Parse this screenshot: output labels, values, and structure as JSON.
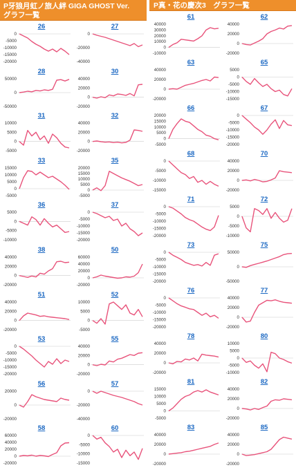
{
  "panels": [
    {
      "title": "P牙狼月虹ノ旅人絆 GIGA GHOST Ver.　グラフ一覧"
    },
    {
      "title": "P真・花の慶次3　グラフ一覧"
    }
  ],
  "colors": {
    "header_bg": "#ee8f2b",
    "line": "#e8527a",
    "link": "#1a67c2"
  },
  "chart_data": [
    {
      "type": "line",
      "title": "26",
      "yticks": [
        0,
        -5000,
        -10000,
        -15000,
        -20000
      ],
      "ylim": [
        -20000,
        0
      ],
      "values": [
        0,
        -1500,
        -3000,
        -5500,
        -7500,
        -9000,
        -11000,
        -12500,
        -11000,
        -13000,
        -10500,
        -12500,
        -15000
      ]
    },
    {
      "type": "line",
      "title": "27",
      "yticks": [
        0,
        -20000,
        -40000
      ],
      "ylim": [
        -40000,
        0
      ],
      "values": [
        0,
        -2000,
        -3500,
        -5000,
        -7000,
        -9000,
        -11000,
        -13000,
        -15000,
        -17000,
        -14000,
        -18500,
        -16000
      ]
    },
    {
      "type": "line",
      "title": "28",
      "yticks": [
        50000,
        0,
        -50000
      ],
      "ylim": [
        -50000,
        50000
      ],
      "values": [
        0,
        2000,
        5000,
        3000,
        8000,
        6000,
        10000,
        8000,
        12000,
        45000,
        47000,
        42000,
        48000
      ]
    },
    {
      "type": "line",
      "title": "30",
      "yticks": [
        40000,
        20000,
        0,
        -20000
      ],
      "ylim": [
        -20000,
        40000
      ],
      "values": [
        0,
        -2000,
        1000,
        -1000,
        5000,
        3000,
        7000,
        6000,
        4000,
        8000,
        3000,
        27000,
        28000
      ]
    },
    {
      "type": "line",
      "title": "31",
      "yticks": [
        10000,
        5000,
        0,
        -5000
      ],
      "ylim": [
        -5000,
        10000
      ],
      "values": [
        0,
        -2000,
        6000,
        3000,
        5000,
        1000,
        3000,
        -1000,
        4000,
        2000,
        -1000,
        -3000,
        -3500
      ]
    },
    {
      "type": "line",
      "title": "32",
      "yticks": [
        40000,
        20000,
        0,
        -20000
      ],
      "ylim": [
        -20000,
        40000
      ],
      "values": [
        0,
        1000,
        -500,
        -1500,
        -1000,
        -2500,
        -1500,
        -3000,
        -2000,
        3000,
        25000,
        24000,
        22000
      ]
    },
    {
      "type": "line",
      "title": "33",
      "yticks": [
        15000,
        10000,
        5000,
        0,
        -5000
      ],
      "ylim": [
        -5000,
        15000
      ],
      "values": [
        0,
        8000,
        13000,
        12500,
        10000,
        12000,
        10000,
        8000,
        9000,
        7000,
        5000,
        2500,
        -500
      ]
    },
    {
      "type": "line",
      "title": "35",
      "yticks": [
        20000,
        15000,
        10000,
        5000,
        0,
        -5000
      ],
      "ylim": [
        -5000,
        20000
      ],
      "values": [
        0,
        2000,
        -500,
        4000,
        17000,
        15000,
        13000,
        11000,
        9500,
        8000,
        6000,
        4000,
        5000
      ]
    },
    {
      "type": "line",
      "title": "36",
      "yticks": [
        5000,
        0,
        -5000,
        -10000
      ],
      "ylim": [
        -10000,
        5000
      ],
      "values": [
        0,
        -1000,
        -2000,
        2500,
        1000,
        -2000,
        1500,
        -1000,
        -3000,
        -2000,
        -4000,
        -6000,
        -5500
      ]
    },
    {
      "type": "line",
      "title": "37",
      "yticks": [
        0,
        -5000,
        -10000,
        -15000,
        -20000
      ],
      "ylim": [
        -20000,
        0
      ],
      "values": [
        0,
        -1000,
        -2500,
        -4000,
        -3000,
        -6000,
        -5000,
        -10000,
        -8000,
        -12000,
        -14000,
        -17000,
        -15000
      ]
    },
    {
      "type": "line",
      "title": "38",
      "yticks": [
        40000,
        20000,
        0,
        -20000
      ],
      "ylim": [
        -20000,
        40000
      ],
      "values": [
        0,
        -2000,
        -4000,
        -1000,
        -3000,
        5000,
        3000,
        10000,
        15000,
        30000,
        31000,
        28000,
        29000
      ]
    },
    {
      "type": "line",
      "title": "50",
      "yticks": [
        60000,
        40000,
        20000,
        0,
        -20000
      ],
      "ylim": [
        -20000,
        60000
      ],
      "values": [
        0,
        3000,
        8000,
        5000,
        3000,
        1000,
        -1000,
        0,
        3000,
        2000,
        5000,
        15000,
        40000
      ]
    },
    {
      "type": "line",
      "title": "51",
      "yticks": [
        40000,
        20000,
        0,
        -20000
      ],
      "ylim": [
        -20000,
        40000
      ],
      "values": [
        0,
        10000,
        16000,
        14000,
        12000,
        9000,
        10000,
        8000,
        7000,
        6000,
        5000,
        4000,
        2000
      ]
    },
    {
      "type": "line",
      "title": "52",
      "yticks": [
        10000,
        5000,
        0,
        -5000
      ],
      "ylim": [
        -5000,
        10000
      ],
      "values": [
        0,
        -1500,
        1000,
        -2000,
        9000,
        10000,
        8000,
        6000,
        8500,
        4000,
        3000,
        6000,
        2000
      ]
    },
    {
      "type": "line",
      "title": "53",
      "yticks": [
        0,
        -5000,
        -10000,
        -15000,
        -20000
      ],
      "ylim": [
        -20000,
        0
      ],
      "values": [
        0,
        -2000,
        -4500,
        -7000,
        -10000,
        -12500,
        -15000,
        -11000,
        -13000,
        -9000,
        -12500,
        -10000,
        -11000
      ]
    },
    {
      "type": "line",
      "title": "55",
      "yticks": [
        40000,
        20000,
        0,
        -20000
      ],
      "ylim": [
        -20000,
        40000
      ],
      "values": [
        0,
        -2000,
        1000,
        -500,
        8000,
        6000,
        12000,
        14000,
        18000,
        22000,
        20000,
        25000,
        26000
      ]
    },
    {
      "type": "line",
      "title": "56",
      "yticks": [
        20000,
        0,
        -20000
      ],
      "ylim": [
        -20000,
        20000
      ],
      "values": [
        0,
        -3000,
        5000,
        15000,
        12000,
        10000,
        8000,
        7000,
        6000,
        5000,
        10000,
        8000,
        7000
      ]
    },
    {
      "type": "line",
      "title": "57",
      "yticks": [
        0,
        -20000,
        -40000
      ],
      "ylim": [
        -40000,
        0
      ],
      "values": [
        0,
        -3000,
        0,
        -2000,
        -4000,
        -6000,
        -7500,
        -9000,
        -11000,
        -13000,
        -15000,
        -18000,
        -20000
      ]
    },
    {
      "type": "line",
      "title": "58",
      "yticks": [
        60000,
        40000,
        20000,
        0,
        -20000
      ],
      "ylim": [
        -20000,
        60000
      ],
      "values": [
        0,
        2000,
        1000,
        3000,
        0,
        2000,
        1000,
        -1000,
        5000,
        10000,
        30000,
        38000,
        39000
      ]
    },
    {
      "type": "line",
      "title": "60",
      "yticks": [
        0,
        -5000,
        -10000,
        -15000
      ],
      "ylim": [
        -15000,
        0
      ],
      "values": [
        0,
        -2000,
        -1000,
        -4000,
        -6000,
        -9000,
        -7500,
        -12000,
        -8000,
        -11000,
        -9000,
        -13000,
        -7000
      ]
    },
    {
      "type": "line",
      "title": "61",
      "yticks": [
        40000,
        30000,
        20000,
        10000,
        0,
        -10000
      ],
      "ylim": [
        -10000,
        40000
      ],
      "values": [
        0,
        5000,
        8000,
        14000,
        13000,
        12000,
        11000,
        15000,
        20000,
        30000,
        34000,
        32000,
        33000
      ]
    },
    {
      "type": "line",
      "title": "62",
      "yticks": [
        40000,
        20000,
        0,
        -20000
      ],
      "ylim": [
        -20000,
        40000
      ],
      "values": [
        0,
        -2000,
        -3000,
        1000,
        5000,
        10000,
        20000,
        25000,
        28000,
        32000,
        30000,
        36000,
        37000
      ]
    },
    {
      "type": "line",
      "title": "63",
      "yticks": [
        40000,
        20000,
        0,
        -20000
      ],
      "ylim": [
        -20000,
        40000
      ],
      "values": [
        0,
        1000,
        0,
        4000,
        8000,
        10000,
        12000,
        15000,
        18000,
        20000,
        17000,
        25000,
        24000
      ]
    },
    {
      "type": "line",
      "title": "65",
      "yticks": [
        5000,
        0,
        -5000,
        -10000,
        -15000
      ],
      "ylim": [
        -15000,
        5000
      ],
      "values": [
        0,
        -3000,
        -5000,
        -1000,
        -4000,
        -6500,
        -5000,
        -8000,
        -10000,
        -9000,
        -12000,
        -13000,
        -8000
      ]
    },
    {
      "type": "line",
      "title": "66",
      "yticks": [
        20000,
        15000,
        10000,
        5000,
        0,
        -5000
      ],
      "ylim": [
        -5000,
        20000
      ],
      "values": [
        0,
        8000,
        13000,
        17000,
        15000,
        14000,
        11000,
        8000,
        6000,
        3000,
        2000,
        0,
        -1000
      ]
    },
    {
      "type": "line",
      "title": "67",
      "yticks": [
        0,
        -5000,
        -10000,
        -15000,
        -20000
      ],
      "ylim": [
        -20000,
        0
      ],
      "values": [
        0,
        -2500,
        -5000,
        -8000,
        -10000,
        -13000,
        -10000,
        -6000,
        -3000,
        -9000,
        -3500,
        -6500,
        -7000
      ]
    },
    {
      "type": "line",
      "title": "68",
      "yticks": [
        0,
        -5000,
        -10000,
        -15000
      ],
      "ylim": [
        -15000,
        0
      ],
      "values": [
        0,
        -2000,
        -4000,
        -6000,
        -7000,
        -9000,
        -8000,
        -11000,
        -10000,
        -12000,
        -10500,
        -12000,
        -13000
      ]
    },
    {
      "type": "line",
      "title": "70",
      "yticks": [
        40000,
        20000,
        0,
        -20000
      ],
      "ylim": [
        -20000,
        40000
      ],
      "values": [
        0,
        1000,
        -1000,
        2000,
        0,
        -3000,
        -2000,
        1000,
        5000,
        20000,
        18000,
        17000,
        16000
      ]
    },
    {
      "type": "line",
      "title": "71",
      "yticks": [
        0,
        -5000,
        -10000,
        -15000,
        -20000
      ],
      "ylim": [
        -20000,
        0
      ],
      "values": [
        0,
        -1000,
        -3000,
        -5000,
        -7500,
        -9000,
        -10000,
        -12000,
        -14000,
        -15500,
        -16500,
        -14000,
        -6000
      ]
    },
    {
      "type": "line",
      "title": "72",
      "yticks": [
        5000,
        0,
        -5000,
        -10000
      ],
      "ylim": [
        -10000,
        5000
      ],
      "values": [
        0,
        -6000,
        -8000,
        4000,
        3000,
        1000,
        4000,
        -1000,
        2000,
        -1000,
        -3000,
        -2000,
        4000
      ]
    },
    {
      "type": "line",
      "title": "73",
      "yticks": [
        0,
        -5000,
        -10000,
        -15000,
        -20000
      ],
      "ylim": [
        -20000,
        0
      ],
      "values": [
        0,
        -2000,
        -3500,
        -5000,
        -7000,
        -8000,
        -9000,
        -8500,
        -9500,
        -7000,
        -9000,
        -2000,
        -1000
      ]
    },
    {
      "type": "line",
      "title": "75",
      "yticks": [
        50000,
        0,
        -50000
      ],
      "ylim": [
        -50000,
        50000
      ],
      "values": [
        0,
        -2000,
        4000,
        8000,
        12000,
        16000,
        20000,
        25000,
        30000,
        35000,
        42000,
        45000,
        46000
      ]
    },
    {
      "type": "line",
      "title": "76",
      "yticks": [
        0,
        -5000,
        -10000,
        -15000,
        -20000
      ],
      "ylim": [
        -20000,
        0
      ],
      "values": [
        0,
        -2000,
        -4000,
        -5500,
        -6500,
        -7500,
        -8000,
        -10000,
        -12000,
        -10500,
        -13000,
        -12000,
        -14000
      ]
    },
    {
      "type": "line",
      "title": "77",
      "yticks": [
        40000,
        20000,
        0,
        -20000
      ],
      "ylim": [
        -20000,
        40000
      ],
      "values": [
        0,
        -10000,
        -8000,
        10000,
        25000,
        30000,
        35000,
        34000,
        36000,
        33000,
        31000,
        30000,
        29000
      ]
    },
    {
      "type": "line",
      "title": "78",
      "yticks": [
        40000,
        20000,
        0,
        -20000
      ],
      "ylim": [
        -20000,
        40000
      ],
      "values": [
        0,
        -2000,
        3000,
        2000,
        8000,
        6000,
        10000,
        4000,
        18000,
        16000,
        15000,
        14000,
        12000
      ]
    },
    {
      "type": "line",
      "title": "80",
      "yticks": [
        10000,
        5000,
        0,
        -5000,
        -10000
      ],
      "ylim": [
        -10000,
        10000
      ],
      "values": [
        0,
        -3000,
        -2000,
        -5000,
        -7000,
        -4000,
        -9500,
        4000,
        3000,
        0,
        -1000,
        -2500,
        -3500
      ]
    },
    {
      "type": "line",
      "title": "81",
      "yticks": [
        15000,
        10000,
        5000,
        0,
        -5000
      ],
      "ylim": [
        -5000,
        15000
      ],
      "values": [
        0,
        2000,
        5000,
        8000,
        10000,
        11000,
        13000,
        14000,
        13000,
        14500,
        13000,
        12000,
        11000
      ]
    },
    {
      "type": "line",
      "title": "82",
      "yticks": [
        40000,
        20000,
        0,
        -20000
      ],
      "ylim": [
        -20000,
        40000
      ],
      "values": [
        0,
        -1000,
        -3000,
        0,
        -2000,
        2000,
        5000,
        15000,
        18000,
        17000,
        20000,
        19000,
        18000
      ]
    },
    {
      "type": "line",
      "title": "83",
      "yticks": [
        40000,
        20000,
        0,
        -20000
      ],
      "ylim": [
        -20000,
        40000
      ],
      "values": [
        0,
        1000,
        2000,
        3000,
        5000,
        6000,
        8000,
        10000,
        12000,
        14000,
        16000,
        20000,
        23000
      ]
    },
    {
      "type": "line",
      "title": "85",
      "yticks": [
        40000,
        20000,
        0,
        -20000
      ],
      "ylim": [
        -20000,
        40000
      ],
      "values": [
        0,
        -3000,
        -2000,
        -1000,
        1000,
        3000,
        5000,
        10000,
        20000,
        30000,
        35000,
        33000,
        31000
      ]
    }
  ]
}
